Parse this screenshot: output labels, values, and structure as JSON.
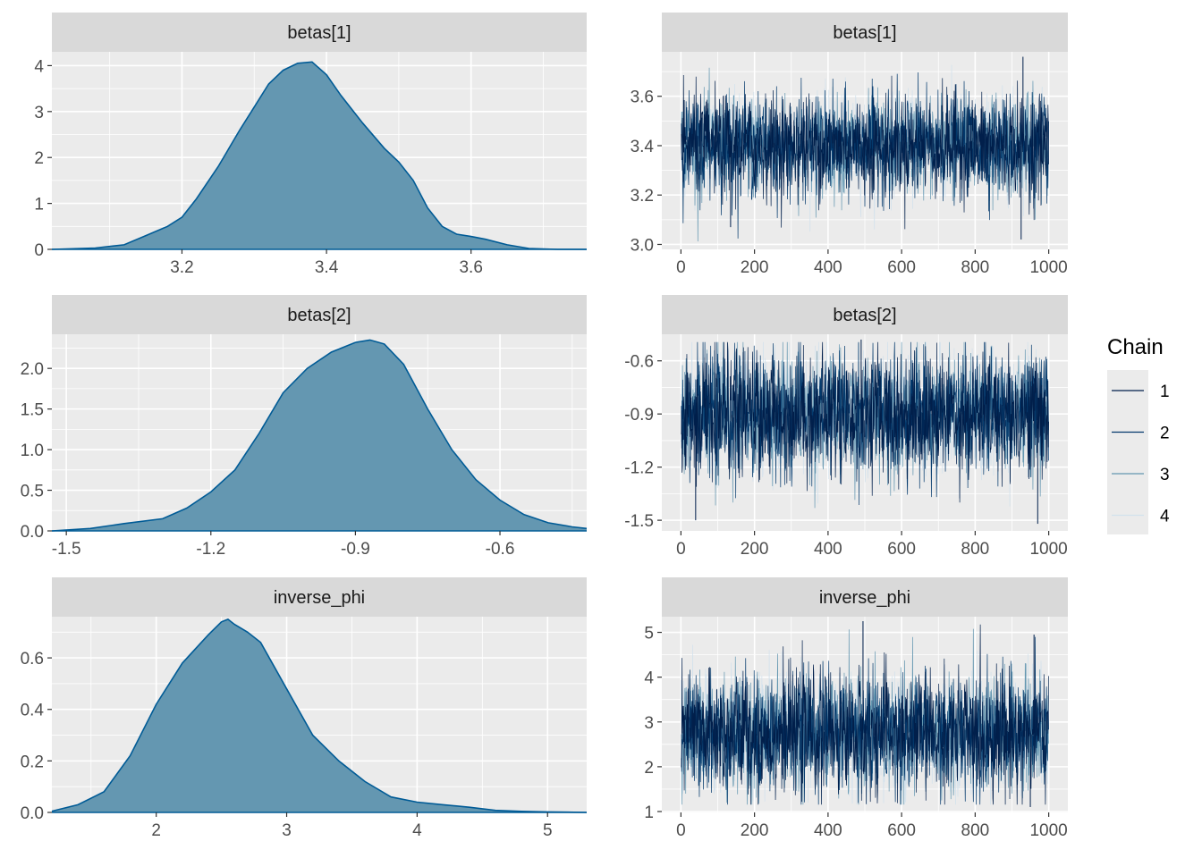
{
  "colors": {
    "panel_bg": "#ebebeb",
    "strip_bg": "#d9d9d9",
    "grid_major": "#ffffff",
    "density_fill": "#6497b1",
    "density_line": "#005b96",
    "axis_tick": "#333333",
    "chains": [
      "#011f4b",
      "#03396c",
      "#6497b1",
      "#d1e1ec"
    ]
  },
  "legend": {
    "title": "Chain",
    "items": [
      "1",
      "2",
      "3",
      "4"
    ],
    "placement": "right"
  },
  "chart_data": [
    {
      "type": "area",
      "title": "betas[1]",
      "xlim": [
        3.02,
        3.76
      ],
      "ylim": [
        0,
        4.3
      ],
      "xticks": [
        3.2,
        3.4,
        3.6
      ],
      "xtick_labels": [
        "3.2",
        "3.4",
        "3.6"
      ],
      "yticks": [
        0,
        1,
        2,
        3,
        4
      ],
      "ytick_labels": [
        "0",
        "1",
        "2",
        "3",
        "4"
      ],
      "x": [
        3.02,
        3.08,
        3.12,
        3.15,
        3.18,
        3.2,
        3.22,
        3.25,
        3.28,
        3.3,
        3.32,
        3.34,
        3.36,
        3.38,
        3.4,
        3.42,
        3.45,
        3.48,
        3.5,
        3.52,
        3.54,
        3.56,
        3.58,
        3.6,
        3.62,
        3.65,
        3.68,
        3.72,
        3.76
      ],
      "y": [
        0.0,
        0.03,
        0.1,
        0.3,
        0.5,
        0.7,
        1.1,
        1.8,
        2.6,
        3.1,
        3.6,
        3.9,
        4.05,
        4.08,
        3.8,
        3.35,
        2.75,
        2.2,
        1.9,
        1.5,
        0.9,
        0.5,
        0.33,
        0.28,
        0.22,
        0.1,
        0.02,
        0.0,
        0.0
      ]
    },
    {
      "type": "line",
      "title": "betas[1]",
      "xlim": [
        -52,
        1052
      ],
      "ylim": [
        2.98,
        3.78
      ],
      "xticks": [
        0,
        200,
        400,
        600,
        800,
        1000
      ],
      "xtick_labels": [
        "0",
        "200",
        "400",
        "600",
        "800",
        "1000"
      ],
      "yticks": [
        3.0,
        3.2,
        3.4,
        3.6
      ],
      "ytick_labels": [
        "3.0",
        "3.2",
        "3.4",
        "3.6"
      ],
      "iterations": [
        1,
        1000
      ],
      "chain_means": [
        3.4,
        3.4,
        3.4,
        3.4
      ],
      "chain_sds": [
        0.1,
        0.1,
        0.1,
        0.1
      ],
      "extremes": [
        {
          "x": 930,
          "y": 3.76
        },
        {
          "x": 925,
          "y": 3.02
        },
        {
          "x": 135,
          "y": 3.07
        }
      ]
    },
    {
      "type": "area",
      "title": "betas[2]",
      "xlim": [
        -1.53,
        -0.42
      ],
      "ylim": [
        0,
        2.42
      ],
      "xticks": [
        -1.5,
        -1.2,
        -0.9,
        -0.6
      ],
      "xtick_labels": [
        "-1.5",
        "-1.2",
        "-0.9",
        "-0.6"
      ],
      "yticks": [
        0,
        0.5,
        1.0,
        1.5,
        2.0
      ],
      "ytick_labels": [
        "0.0",
        "0.5",
        "1.0",
        "1.5",
        "2.0"
      ],
      "x": [
        -1.53,
        -1.45,
        -1.38,
        -1.3,
        -1.25,
        -1.2,
        -1.15,
        -1.1,
        -1.05,
        -1.0,
        -0.95,
        -0.9,
        -0.87,
        -0.84,
        -0.8,
        -0.75,
        -0.7,
        -0.65,
        -0.6,
        -0.55,
        -0.5,
        -0.45,
        -0.42
      ],
      "y": [
        0.0,
        0.03,
        0.09,
        0.15,
        0.28,
        0.48,
        0.75,
        1.2,
        1.7,
        2.0,
        2.2,
        2.32,
        2.35,
        2.3,
        2.05,
        1.5,
        1.0,
        0.63,
        0.38,
        0.2,
        0.1,
        0.05,
        0.03
      ]
    },
    {
      "type": "line",
      "title": "betas[2]",
      "xlim": [
        -52,
        1052
      ],
      "ylim": [
        -1.56,
        -0.45
      ],
      "xticks": [
        0,
        200,
        400,
        600,
        800,
        1000
      ],
      "xtick_labels": [
        "0",
        "200",
        "400",
        "600",
        "800",
        "1000"
      ],
      "yticks": [
        -1.5,
        -1.2,
        -0.9,
        -0.6
      ],
      "ytick_labels": [
        "-1.5",
        "-1.2",
        "-0.9",
        "-0.6"
      ],
      "iterations": [
        1,
        1000
      ],
      "chain_means": [
        -0.9,
        -0.9,
        -0.9,
        -0.9
      ],
      "chain_sds": [
        0.17,
        0.17,
        0.17,
        0.17
      ],
      "extremes": [
        {
          "x": 490,
          "y": -0.48
        },
        {
          "x": 40,
          "y": -1.5
        },
        {
          "x": 970,
          "y": -1.52
        }
      ]
    },
    {
      "type": "area",
      "title": "inverse_phi",
      "xlim": [
        1.2,
        5.3
      ],
      "ylim": [
        0,
        0.76
      ],
      "xticks": [
        2,
        3,
        4,
        5
      ],
      "xtick_labels": [
        "2",
        "3",
        "4",
        "5"
      ],
      "yticks": [
        0,
        0.2,
        0.4,
        0.6
      ],
      "ytick_labels": [
        "0.0",
        "0.2",
        "0.4",
        "0.6"
      ],
      "x": [
        1.2,
        1.4,
        1.6,
        1.8,
        2.0,
        2.2,
        2.4,
        2.5,
        2.55,
        2.6,
        2.7,
        2.8,
        2.9,
        3.0,
        3.2,
        3.4,
        3.6,
        3.8,
        4.0,
        4.2,
        4.4,
        4.6,
        4.8,
        5.0,
        5.3
      ],
      "y": [
        0.005,
        0.03,
        0.08,
        0.22,
        0.42,
        0.58,
        0.69,
        0.74,
        0.75,
        0.73,
        0.7,
        0.66,
        0.57,
        0.48,
        0.3,
        0.2,
        0.12,
        0.06,
        0.04,
        0.03,
        0.02,
        0.008,
        0.004,
        0.002,
        0.0
      ]
    },
    {
      "type": "line",
      "title": "inverse_phi",
      "xlim": [
        -52,
        1052
      ],
      "ylim": [
        0.98,
        5.35
      ],
      "xticks": [
        0,
        200,
        400,
        600,
        800,
        1000
      ],
      "xtick_labels": [
        "0",
        "200",
        "400",
        "600",
        "800",
        "1000"
      ],
      "yticks": [
        1,
        2,
        3,
        4,
        5
      ],
      "ytick_labels": [
        "1",
        "2",
        "3",
        "4",
        "5"
      ],
      "iterations": [
        1,
        1000
      ],
      "chain_means": [
        2.75,
        2.75,
        2.75,
        2.75
      ],
      "chain_sds": [
        0.65,
        0.65,
        0.65,
        0.65
      ],
      "extremes": [
        {
          "x": 495,
          "y": 5.25
        },
        {
          "x": 960,
          "y": 4.95
        },
        {
          "x": 950,
          "y": 1.1
        }
      ]
    }
  ]
}
